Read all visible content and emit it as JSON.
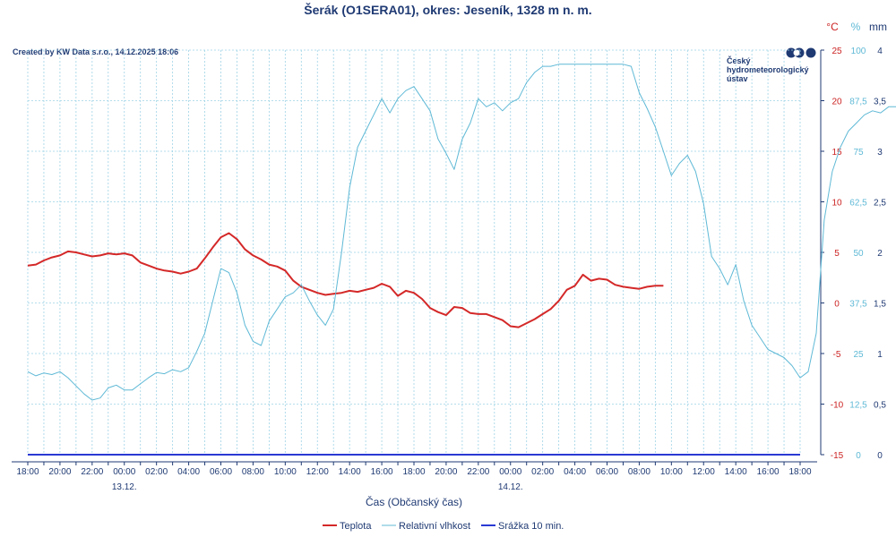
{
  "chart_data": {
    "type": "line",
    "title": "Šerák (O1SERA01), okres: Jeseník, 1328 m n. m.",
    "credit": "Created by KW Data s.r.o., 14.12.2025 18:06",
    "logo": [
      "Český",
      "hydrometeorologický",
      "ústav"
    ],
    "xlabel": "Čas (Občanský čas)",
    "x_ticks": [
      "18:00",
      "20:00",
      "22:00",
      "00:00",
      "02:00",
      "04:00",
      "06:00",
      "08:00",
      "10:00",
      "12:00",
      "14:00",
      "16:00",
      "18:00",
      "20:00",
      "22:00",
      "00:00",
      "02:00",
      "04:00",
      "06:00",
      "08:00",
      "10:00",
      "12:00",
      "14:00",
      "16:00",
      "18:00"
    ],
    "date_labels": [
      {
        "tick_index": 3,
        "text": "13.12."
      },
      {
        "tick_index": 15,
        "text": "14.12."
      }
    ],
    "axes": {
      "temperature": {
        "unit": "°C",
        "range": [
          -15,
          25
        ],
        "ticks": [
          "-15",
          "-10",
          "-5",
          "0",
          "5",
          "10",
          "15",
          "20",
          "25"
        ],
        "color": "#cc2222"
      },
      "humidity": {
        "unit": "%",
        "range": [
          0,
          100
        ],
        "ticks": [
          "0",
          "12,5",
          "25",
          "37,5",
          "50",
          "62,5",
          "75",
          "87,5",
          "100"
        ],
        "color": "#5fb9d6"
      },
      "precipitation": {
        "unit": "mm",
        "range": [
          0,
          4
        ],
        "ticks": [
          "0",
          "0,5",
          "1",
          "1,5",
          "2",
          "2,5",
          "3",
          "3,5",
          "4"
        ],
        "color": "#1f3a73"
      }
    },
    "grid": true,
    "legend_position": "bottom-center",
    "series": [
      {
        "name": "Teplota",
        "color": "#d42828",
        "axis": "temperature",
        "points": [
          [
            0,
            3.7
          ],
          [
            0.5,
            3.8
          ],
          [
            1,
            4.2
          ],
          [
            1.5,
            4.5
          ],
          [
            2,
            4.7
          ],
          [
            2.5,
            5.1
          ],
          [
            3,
            5.0
          ],
          [
            3.5,
            4.8
          ],
          [
            4,
            4.6
          ],
          [
            4.5,
            4.7
          ],
          [
            5,
            4.9
          ],
          [
            5.5,
            4.8
          ],
          [
            6,
            4.9
          ],
          [
            6.5,
            4.7
          ],
          [
            7,
            4.0
          ],
          [
            7.5,
            3.7
          ],
          [
            8,
            3.4
          ],
          [
            8.5,
            3.2
          ],
          [
            9,
            3.1
          ],
          [
            9.5,
            2.9
          ],
          [
            10,
            3.1
          ],
          [
            10.5,
            3.4
          ],
          [
            11,
            4.4
          ],
          [
            11.5,
            5.5
          ],
          [
            12,
            6.5
          ],
          [
            12.5,
            6.9
          ],
          [
            13,
            6.3
          ],
          [
            13.5,
            5.3
          ],
          [
            14,
            4.7
          ],
          [
            14.5,
            4.3
          ],
          [
            15,
            3.8
          ],
          [
            15.5,
            3.6
          ],
          [
            16,
            3.2
          ],
          [
            16.5,
            2.2
          ],
          [
            17,
            1.6
          ],
          [
            17.5,
            1.3
          ],
          [
            18,
            1.0
          ],
          [
            18.5,
            0.8
          ],
          [
            19,
            0.9
          ],
          [
            19.5,
            1.0
          ],
          [
            20,
            1.2
          ],
          [
            20.5,
            1.1
          ],
          [
            21,
            1.3
          ],
          [
            21.5,
            1.5
          ],
          [
            22,
            1.9
          ],
          [
            22.5,
            1.6
          ],
          [
            23,
            0.7
          ],
          [
            23.5,
            1.2
          ],
          [
            24,
            1.0
          ],
          [
            24.5,
            0.4
          ],
          [
            25,
            -0.5
          ],
          [
            25.5,
            -0.9
          ],
          [
            26,
            -1.2
          ],
          [
            26.5,
            -0.4
          ],
          [
            27,
            -0.5
          ],
          [
            27.5,
            -1.0
          ],
          [
            28,
            -1.1
          ],
          [
            28.5,
            -1.1
          ],
          [
            29,
            -1.4
          ],
          [
            29.5,
            -1.7
          ],
          [
            30,
            -2.3
          ],
          [
            30.5,
            -2.4
          ],
          [
            31,
            -2.0
          ],
          [
            31.5,
            -1.6
          ],
          [
            32,
            -1.1
          ],
          [
            32.5,
            -0.6
          ],
          [
            33,
            0.2
          ],
          [
            33.5,
            1.3
          ],
          [
            34,
            1.7
          ],
          [
            34.5,
            2.8
          ],
          [
            35,
            2.2
          ],
          [
            35.5,
            2.4
          ],
          [
            36,
            2.3
          ],
          [
            36.5,
            1.8
          ],
          [
            37,
            1.6
          ],
          [
            37.5,
            1.5
          ],
          [
            38,
            1.4
          ],
          [
            38.5,
            1.6
          ],
          [
            39,
            1.7
          ],
          [
            39.5,
            1.7
          ]
        ]
      },
      {
        "name": "Relativní vlhkost",
        "color": "#5fb9d6",
        "axis": "humidity",
        "points": [
          [
            0,
            20.5
          ],
          [
            0.5,
            19.5
          ],
          [
            1,
            20.2
          ],
          [
            1.5,
            19.8
          ],
          [
            2,
            20.5
          ],
          [
            2.5,
            19.0
          ],
          [
            3,
            17.0
          ],
          [
            3.5,
            15.0
          ],
          [
            4,
            13.5
          ],
          [
            4.5,
            14.0
          ],
          [
            5,
            16.5
          ],
          [
            5.5,
            17.2
          ],
          [
            6,
            16.0
          ],
          [
            6.5,
            16.0
          ],
          [
            7,
            17.5
          ],
          [
            7.5,
            19.0
          ],
          [
            8,
            20.3
          ],
          [
            8.5,
            20.0
          ],
          [
            9,
            21.0
          ],
          [
            9.5,
            20.5
          ],
          [
            10,
            21.5
          ],
          [
            10.5,
            25.5
          ],
          [
            11,
            30.0
          ],
          [
            11.5,
            38.0
          ],
          [
            12,
            46.0
          ],
          [
            12.5,
            45.0
          ],
          [
            13,
            40.0
          ],
          [
            13.5,
            32.0
          ],
          [
            14,
            28.0
          ],
          [
            14.5,
            27.0
          ],
          [
            15,
            33.0
          ],
          [
            15.5,
            36.0
          ],
          [
            16,
            39.0
          ],
          [
            16.5,
            40.0
          ],
          [
            17,
            42.0
          ],
          [
            17.5,
            38.0
          ],
          [
            18,
            34.5
          ],
          [
            18.5,
            32.0
          ],
          [
            19,
            36.0
          ],
          [
            19.5,
            50.0
          ],
          [
            20,
            66.0
          ],
          [
            20.5,
            76.0
          ],
          [
            21,
            80.0
          ],
          [
            21.5,
            84.0
          ],
          [
            22,
            88.0
          ],
          [
            22.5,
            84.5
          ],
          [
            23,
            88.0
          ],
          [
            23.5,
            90.0
          ],
          [
            24,
            91.0
          ],
          [
            24.5,
            88.0
          ],
          [
            25,
            85.0
          ],
          [
            25.5,
            78.0
          ],
          [
            26,
            74.5
          ],
          [
            26.5,
            70.5
          ],
          [
            27,
            78.0
          ],
          [
            27.5,
            82.0
          ],
          [
            28,
            88.0
          ],
          [
            28.5,
            86.0
          ],
          [
            29,
            87.0
          ],
          [
            29.5,
            85.0
          ],
          [
            30,
            87.0
          ],
          [
            30.5,
            88.0
          ],
          [
            31,
            92.0
          ],
          [
            31.5,
            94.5
          ],
          [
            32,
            96.0
          ],
          [
            32.5,
            96.0
          ],
          [
            33,
            96.5
          ],
          [
            33.5,
            96.5
          ],
          [
            34,
            96.5
          ],
          [
            34.5,
            96.5
          ],
          [
            35,
            96.5
          ],
          [
            35.5,
            96.5
          ],
          [
            36,
            96.5
          ],
          [
            36.5,
            96.5
          ],
          [
            37,
            96.5
          ],
          [
            37.5,
            96.0
          ],
          [
            38,
            89.5
          ],
          [
            38.5,
            85.5
          ],
          [
            39,
            81.0
          ],
          [
            39.5,
            75.0
          ],
          [
            40,
            69.0
          ],
          [
            40.5,
            72.0
          ],
          [
            41,
            74.0
          ],
          [
            41.5,
            70.0
          ],
          [
            42,
            62.0
          ],
          [
            42.5,
            49.0
          ],
          [
            43,
            46.0
          ],
          [
            43.5,
            42.0
          ],
          [
            44,
            47.0
          ],
          [
            44.5,
            38.0
          ],
          [
            45,
            32.0
          ],
          [
            45.5,
            29.0
          ],
          [
            46,
            26.0
          ],
          [
            46.5,
            25.0
          ],
          [
            47,
            24.0
          ],
          [
            47.5,
            22.0
          ],
          [
            48,
            19.0
          ],
          [
            48.5,
            20.5
          ],
          [
            49,
            30.0
          ],
          [
            49.5,
            58.0
          ],
          [
            50,
            70.0
          ],
          [
            50.5,
            76.0
          ],
          [
            51,
            80.0
          ],
          [
            51.5,
            82.0
          ],
          [
            52,
            84.0
          ],
          [
            52.5,
            85.0
          ],
          [
            53,
            84.5
          ],
          [
            53.5,
            86.0
          ],
          [
            54,
            86.0
          ]
        ]
      },
      {
        "name": "Srážka 10 min.",
        "color": "#2a3ad4",
        "axis": "precipitation",
        "points": [
          [
            0,
            0
          ],
          [
            48,
            0
          ]
        ]
      }
    ]
  }
}
